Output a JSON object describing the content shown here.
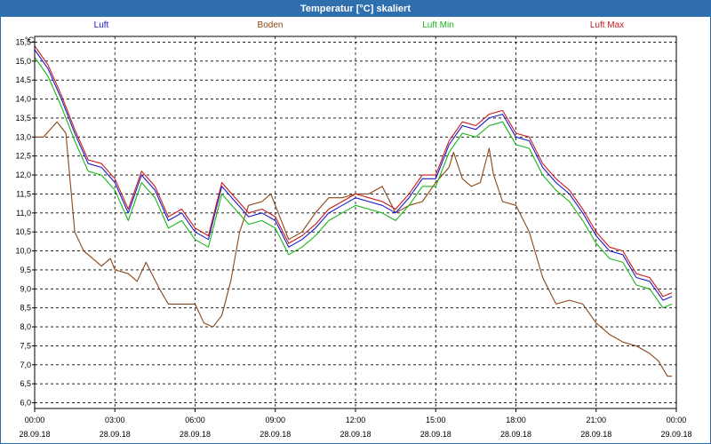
{
  "window": {
    "title": "Temperatur [°C] skaliert"
  },
  "chart_data": {
    "type": "line",
    "title": "Temperatur [°C] skaliert",
    "y_unit": "°C",
    "ylim": [
      5.85,
      15.65
    ],
    "y_ticks": [
      "6,0",
      "6,5",
      "7,0",
      "7,5",
      "8,0",
      "8,5",
      "9,0",
      "9,5",
      "10,0",
      "10,5",
      "11,0",
      "11,5",
      "12,0",
      "12,5",
      "13,0",
      "13,5",
      "14,0",
      "14,5",
      "15,0",
      "15,5"
    ],
    "x_ticks": [
      {
        "time": "00:00",
        "date": "28.09.18"
      },
      {
        "time": "03:00",
        "date": "28.09.18"
      },
      {
        "time": "06:00",
        "date": "28.09.18"
      },
      {
        "time": "09:00",
        "date": "28.09.18"
      },
      {
        "time": "12:00",
        "date": "28.09.18"
      },
      {
        "time": "15:00",
        "date": "28.09.18"
      },
      {
        "time": "18:00",
        "date": "28.09.18"
      },
      {
        "time": "21:00",
        "date": "28.09.18"
      },
      {
        "time": "00:00",
        "date": "29.09.18"
      }
    ],
    "grid": true,
    "legend_position": "top",
    "series": [
      {
        "name": "Luft",
        "color": "#1a1acc",
        "x": [
          "00:00",
          "00:30",
          "01:00",
          "01:30",
          "02:00",
          "02:30",
          "03:00",
          "03:30",
          "04:00",
          "04:30",
          "05:00",
          "05:30",
          "06:00",
          "06:30",
          "07:00",
          "07:30",
          "08:00",
          "08:30",
          "09:00",
          "09:30",
          "10:00",
          "10:30",
          "11:00",
          "11:30",
          "12:00",
          "12:30",
          "13:00",
          "13:30",
          "14:00",
          "14:30",
          "15:00",
          "15:30",
          "16:00",
          "16:30",
          "17:00",
          "17:30",
          "18:00",
          "18:30",
          "19:00",
          "19:30",
          "20:00",
          "20:30",
          "21:00",
          "21:30",
          "22:00",
          "22:30",
          "23:00",
          "23:30",
          "23:50"
        ],
        "values": [
          15.3,
          14.8,
          14.0,
          13.1,
          12.3,
          12.2,
          11.8,
          11.0,
          12.0,
          11.6,
          10.8,
          11.0,
          10.5,
          10.3,
          11.7,
          11.3,
          10.9,
          11.0,
          10.8,
          10.1,
          10.3,
          10.6,
          11.0,
          11.2,
          11.4,
          11.3,
          11.2,
          11.0,
          11.4,
          11.9,
          11.9,
          12.8,
          13.3,
          13.2,
          13.5,
          13.6,
          13.0,
          12.9,
          12.2,
          11.8,
          11.5,
          11.0,
          10.4,
          10.0,
          9.9,
          9.3,
          9.2,
          8.7,
          8.8
        ]
      },
      {
        "name": "Boden",
        "color": "#8b4513",
        "x": [
          "00:00",
          "00:20",
          "00:50",
          "01:10",
          "01:30",
          "01:50",
          "02:10",
          "02:30",
          "02:50",
          "03:00",
          "03:30",
          "03:50",
          "04:10",
          "04:40",
          "05:00",
          "05:30",
          "06:00",
          "06:20",
          "06:40",
          "07:00",
          "07:20",
          "07:40",
          "08:00",
          "08:30",
          "08:50",
          "09:00",
          "09:30",
          "10:00",
          "10:30",
          "11:00",
          "11:30",
          "12:00",
          "12:30",
          "13:00",
          "13:30",
          "14:00",
          "14:30",
          "15:00",
          "15:30",
          "15:40",
          "16:00",
          "16:20",
          "16:40",
          "17:00",
          "17:10",
          "17:30",
          "18:00",
          "18:30",
          "19:00",
          "19:30",
          "20:00",
          "20:30",
          "21:00",
          "21:30",
          "22:00",
          "22:30",
          "23:00",
          "23:20",
          "23:40",
          "23:50"
        ],
        "values": [
          13.0,
          13.0,
          13.4,
          13.1,
          10.5,
          10.0,
          9.8,
          9.6,
          9.8,
          9.5,
          9.4,
          9.2,
          9.7,
          9.0,
          8.6,
          8.6,
          8.6,
          8.1,
          8.0,
          8.3,
          9.2,
          10.5,
          11.2,
          11.3,
          11.5,
          11.2,
          10.3,
          10.5,
          11.0,
          11.4,
          11.4,
          11.5,
          11.5,
          11.7,
          11.0,
          11.2,
          11.3,
          11.8,
          12.2,
          12.6,
          11.9,
          11.7,
          11.8,
          12.7,
          12.0,
          11.3,
          11.2,
          10.5,
          9.3,
          8.6,
          8.7,
          8.6,
          8.1,
          7.8,
          7.6,
          7.5,
          7.3,
          7.1,
          6.7,
          6.7
        ]
      },
      {
        "name": "Luft Min",
        "color": "#19b419",
        "x": [
          "00:00",
          "00:30",
          "01:00",
          "01:30",
          "02:00",
          "02:30",
          "03:00",
          "03:30",
          "04:00",
          "04:30",
          "05:00",
          "05:30",
          "06:00",
          "06:30",
          "07:00",
          "07:30",
          "08:00",
          "08:30",
          "09:00",
          "09:30",
          "10:00",
          "10:30",
          "11:00",
          "11:30",
          "12:00",
          "12:30",
          "13:00",
          "13:30",
          "14:00",
          "14:30",
          "15:00",
          "15:30",
          "16:00",
          "16:30",
          "17:00",
          "17:30",
          "18:00",
          "18:30",
          "19:00",
          "19:30",
          "20:00",
          "20:30",
          "21:00",
          "21:30",
          "22:00",
          "22:30",
          "23:00",
          "23:30",
          "23:50"
        ],
        "values": [
          15.1,
          14.6,
          13.8,
          12.9,
          12.1,
          12.0,
          11.6,
          10.8,
          11.8,
          11.4,
          10.6,
          10.8,
          10.3,
          10.1,
          11.5,
          11.1,
          10.7,
          10.8,
          10.6,
          9.9,
          10.1,
          10.4,
          10.8,
          11.0,
          11.2,
          11.1,
          11.0,
          10.8,
          11.2,
          11.7,
          11.7,
          12.6,
          13.1,
          13.0,
          13.3,
          13.4,
          12.8,
          12.7,
          12.0,
          11.6,
          11.3,
          10.8,
          10.2,
          9.8,
          9.7,
          9.1,
          9.0,
          8.5,
          8.6
        ]
      },
      {
        "name": "Luft Max",
        "color": "#cc1a1a",
        "x": [
          "00:00",
          "00:30",
          "01:00",
          "01:30",
          "02:00",
          "02:30",
          "03:00",
          "03:30",
          "04:00",
          "04:30",
          "05:00",
          "05:30",
          "06:00",
          "06:30",
          "07:00",
          "07:30",
          "08:00",
          "08:30",
          "09:00",
          "09:30",
          "10:00",
          "10:30",
          "11:00",
          "11:30",
          "12:00",
          "12:30",
          "13:00",
          "13:30",
          "14:00",
          "14:30",
          "15:00",
          "15:30",
          "16:00",
          "16:30",
          "17:00",
          "17:30",
          "18:00",
          "18:30",
          "19:00",
          "19:30",
          "20:00",
          "20:30",
          "21:00",
          "21:30",
          "22:00",
          "22:30",
          "23:00",
          "23:30",
          "23:50"
        ],
        "values": [
          15.4,
          14.9,
          14.1,
          13.2,
          12.4,
          12.3,
          11.9,
          11.1,
          12.1,
          11.7,
          10.9,
          11.1,
          10.6,
          10.4,
          11.8,
          11.4,
          11.0,
          11.1,
          10.9,
          10.2,
          10.4,
          10.7,
          11.1,
          11.3,
          11.5,
          11.4,
          11.3,
          11.1,
          11.5,
          12.0,
          12.0,
          12.9,
          13.4,
          13.3,
          13.6,
          13.7,
          13.1,
          13.0,
          12.3,
          11.9,
          11.6,
          11.1,
          10.5,
          10.1,
          10.0,
          9.4,
          9.3,
          8.8,
          8.9
        ]
      }
    ]
  }
}
